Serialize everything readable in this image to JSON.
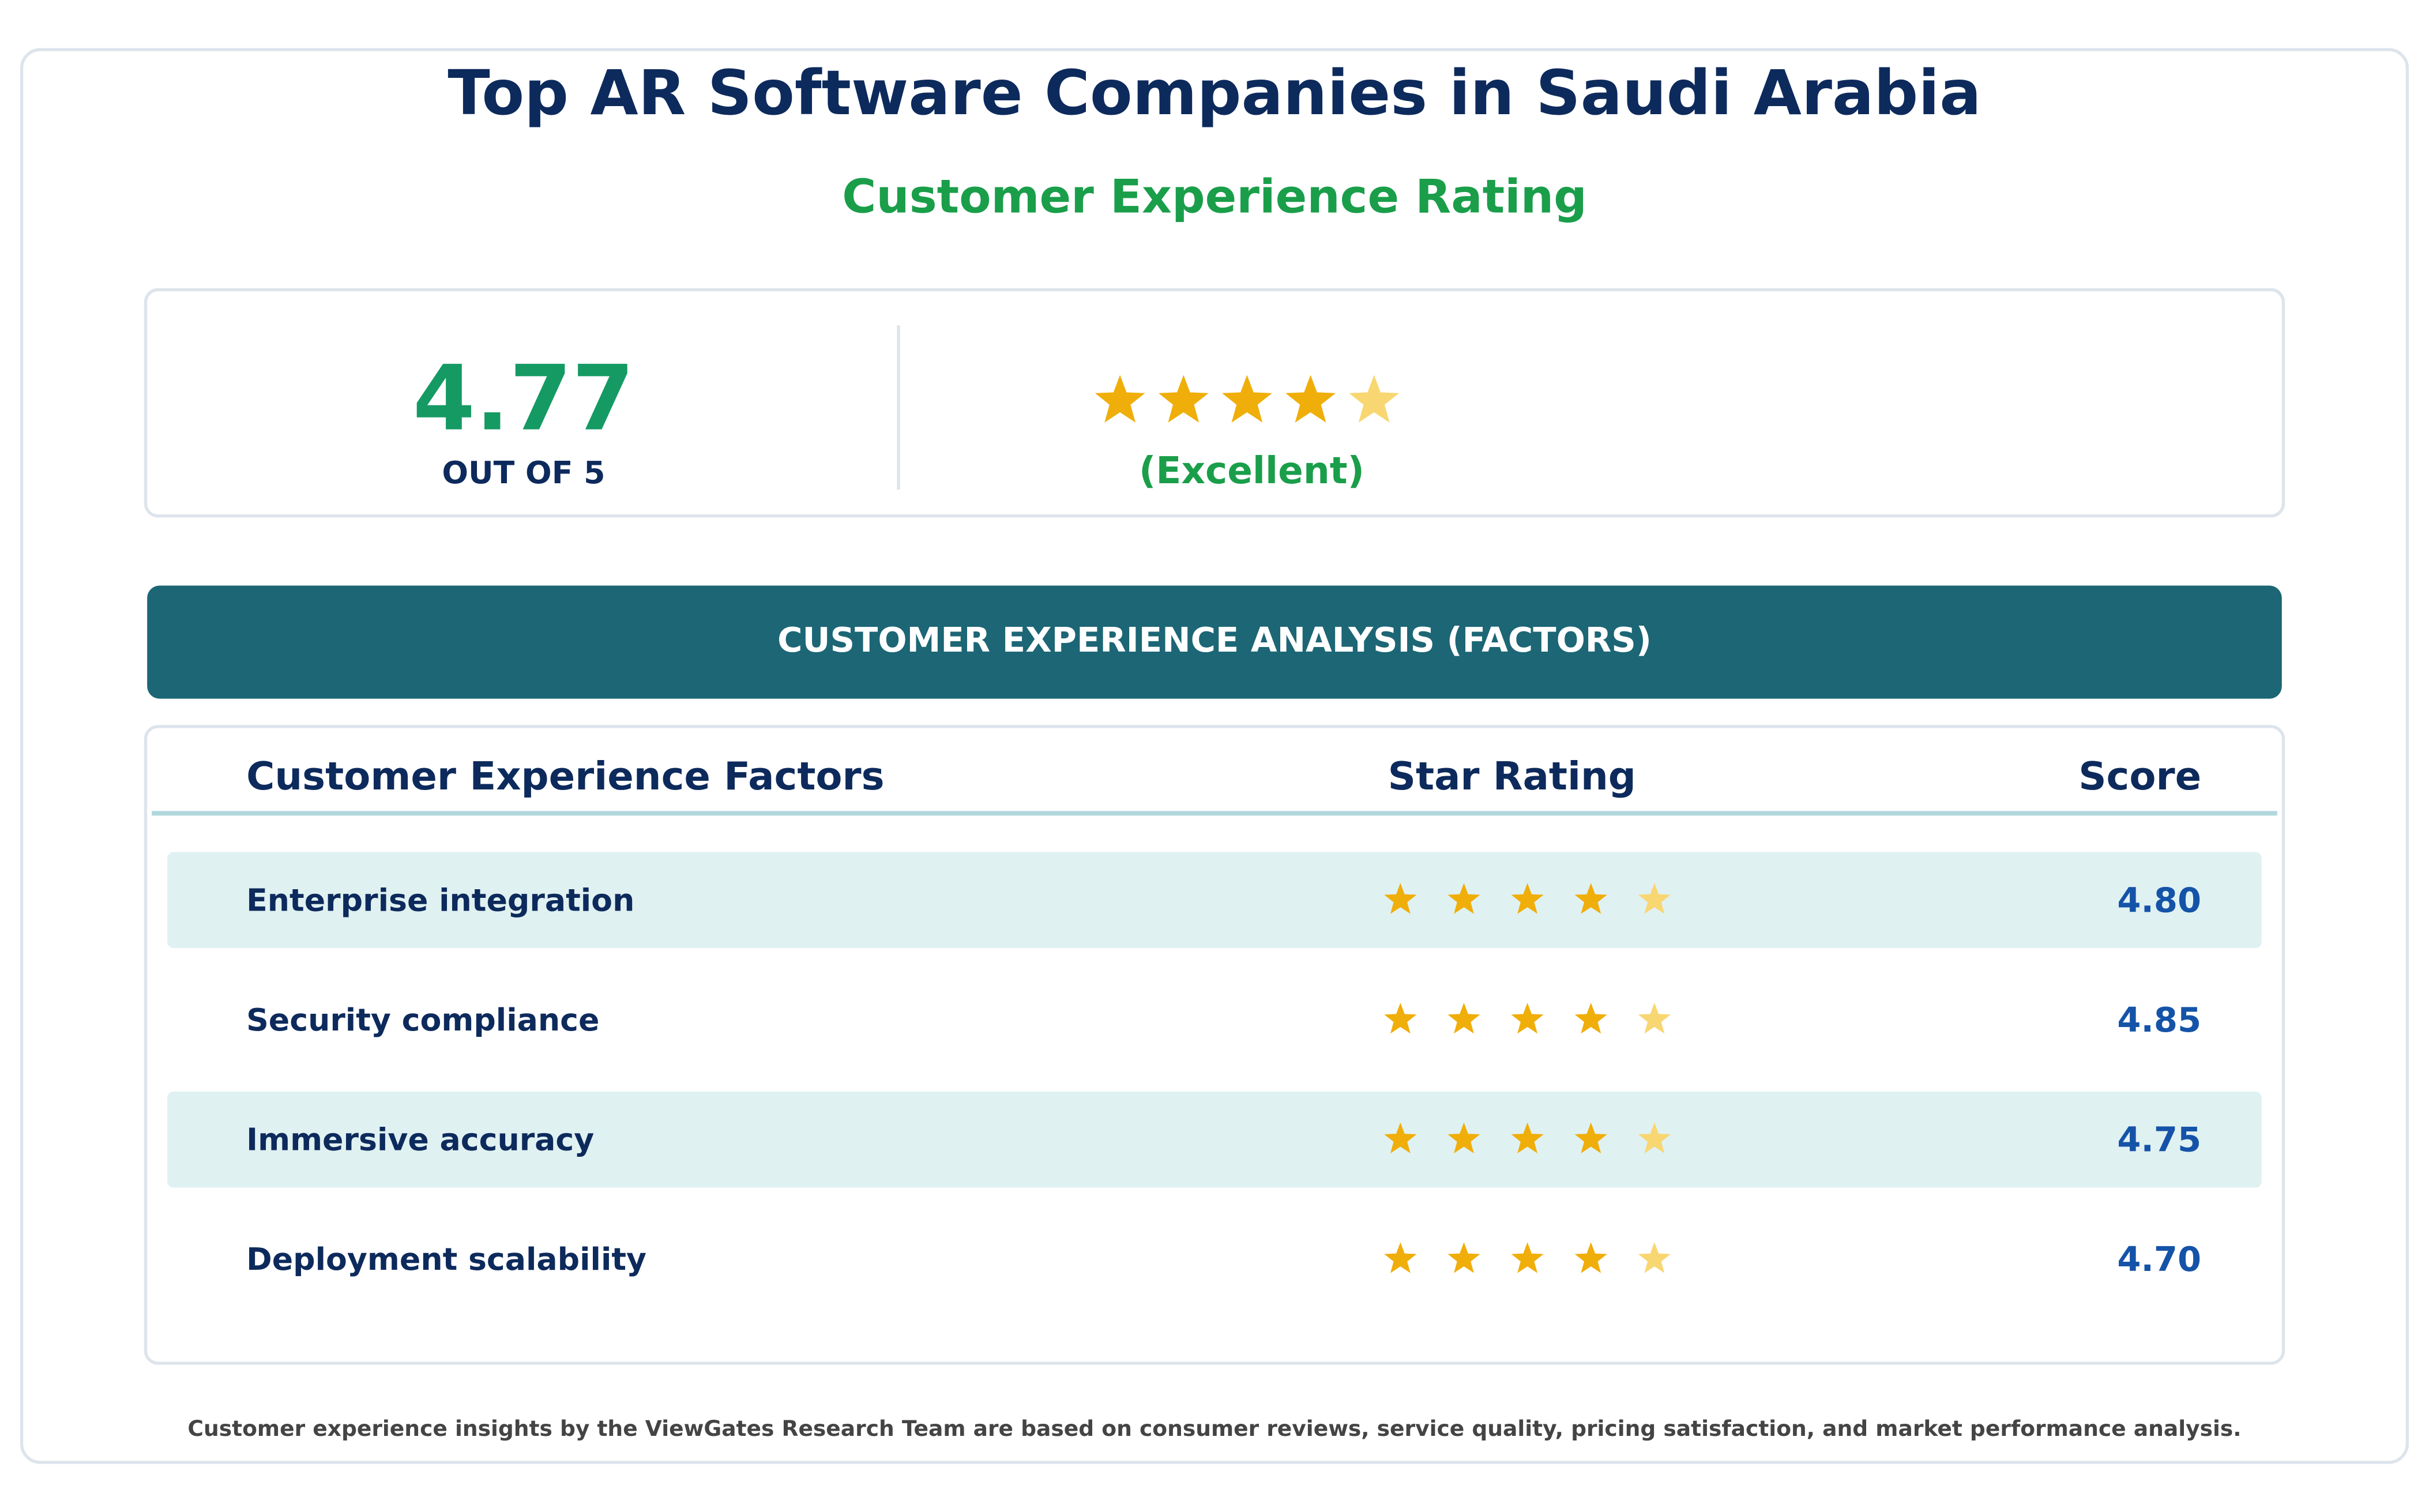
{
  "header": {
    "title": "Top AR Software Companies in Saudi Arabia",
    "subtitle": "Customer Experience Rating"
  },
  "summary": {
    "score": "4.77",
    "scale_label": "OUT OF 5",
    "rating_label": "(Excellent)"
  },
  "section_title": "CUSTOMER EXPERIENCE ANALYSIS (FACTORS)",
  "table": {
    "columns": [
      "Customer Experience Factors",
      "Star Rating",
      "Score"
    ],
    "rows": [
      [
        "Enterprise integration",
        "4.80"
      ],
      [
        "Security compliance",
        "4.85"
      ],
      [
        "Immersive accuracy",
        "4.75"
      ],
      [
        "Deployment scalability",
        "4.70"
      ]
    ]
  },
  "footnote": "Customer experience insights by the ViewGates Research Team are based on consumer reviews, service quality, pricing satisfaction, and market performance analysis."
}
